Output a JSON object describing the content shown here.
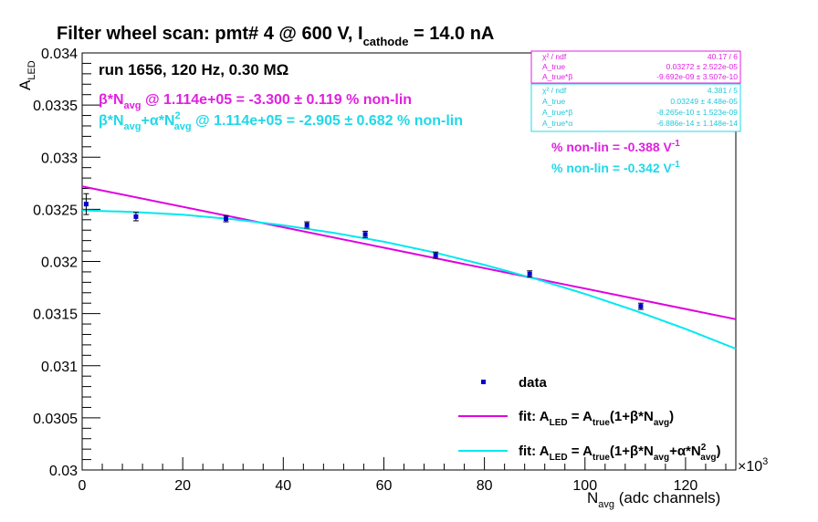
{
  "title": {
    "main": "Filter wheel scan: pmt#   4 @   600 V, I",
    "sub": "cathode",
    "tail": " = 14.0 nA"
  },
  "run_label": "run 1656, 120 Hz, 0.30 MΩ",
  "annotations": {
    "lin": {
      "a": "β*N",
      "a_sub": "avg",
      "b": " @ 1.114e+05 = -3.300 ± 0.119 % non-lin",
      "color": "#e020e0"
    },
    "quad": {
      "a": "β*N",
      "a_sub": "avg",
      "b": "+α*N",
      "b_sup": "2",
      "b_sub": "avg",
      "c": " @ 1.114e+05 = -2.905 ± 0.682 % non-lin",
      "color": "#20d8e8"
    },
    "pv1": {
      "text": "% non-lin = -0.388 V",
      "sup": "-1"
    },
    "pv2": {
      "text": "% non-lin = -0.342 V",
      "sup": "-1"
    }
  },
  "stats": {
    "box1": [
      {
        "name": "χ² / ndf",
        "value": "40.17 / 6"
      },
      {
        "name": "A_true",
        "value": "0.03272 ± 2.522e-05"
      },
      {
        "name": "A_true*β",
        "value": "-9.692e-09 ± 3.507e-10"
      }
    ],
    "box2": [
      {
        "name": "χ² / ndf",
        "value": "4.381 / 5"
      },
      {
        "name": "A_true",
        "value": "0.03249 ± 4.48e-05"
      },
      {
        "name": "A_true*β",
        "value": "-8.265e-10 ± 1.523e-09"
      },
      {
        "name": "A_true*α",
        "value": "-6.886e-14 ± 1.148e-14"
      }
    ]
  },
  "legend": {
    "data": "data",
    "fit1": {
      "p1": "fit: A",
      "s1": "LED",
      "p2": " = A",
      "s2": "true",
      "p3": "(1+β*N",
      "s3": "avg",
      "p4": ")"
    },
    "fit2": {
      "p1": "fit: A",
      "s1": "LED",
      "p2": " = A",
      "s2": "true",
      "p3": "(1+β*N",
      "s3": "avg",
      "p4": "+α*N",
      "sup4": "2",
      "s4": "avg",
      "p5": ")"
    }
  },
  "axes": {
    "ylabel_main": "A",
    "ylabel_sub": "LED",
    "xlabel_main": "N",
    "xlabel_sub": "avg",
    "xlabel_tail": " (adc channels)",
    "x_exponent": "×10",
    "x_exponent_sup": "3"
  },
  "colors": {
    "data": "#0000cc",
    "linear_fit": "#e000e0",
    "quadratic_fit": "#00e8f0"
  },
  "chart_data": {
    "type": "scatter",
    "xlim": [
      0,
      130
    ],
    "ylim": [
      0.03,
      0.034
    ],
    "x_ticks": [
      0,
      20,
      40,
      60,
      80,
      100,
      120
    ],
    "x_tick_labels": [
      "0",
      "20",
      "40",
      "60",
      "80",
      "100",
      "120"
    ],
    "y_ticks": [
      0.03,
      0.0305,
      0.031,
      0.0315,
      0.032,
      0.0325,
      0.033,
      0.0335,
      0.034
    ],
    "y_tick_labels": [
      "0.03",
      "0.0305",
      "0.031",
      "0.0315",
      "0.032",
      "0.0325",
      "0.033",
      "0.0335",
      "0.034"
    ],
    "series": [
      {
        "name": "data",
        "x": [
          0.8,
          10.7,
          28.6,
          44.7,
          56.3,
          70.3,
          89.0,
          111.1
        ],
        "y": [
          0.03255,
          0.03243,
          0.03241,
          0.03235,
          0.03226,
          0.03206,
          0.03188,
          0.03157
        ],
        "err": [
          0.0001,
          4e-05,
          3e-05,
          3e-05,
          3e-05,
          3e-05,
          3e-05,
          3e-05
        ]
      },
      {
        "name": "fit: A_LED = A_true(1+β*N_avg)",
        "x": [
          0,
          130
        ],
        "y": [
          0.03272,
          0.031446
        ]
      },
      {
        "name": "fit: A_LED = A_true(1+β*N_avg+α*N²_avg)",
        "x": [
          0,
          10,
          20,
          30,
          40,
          50,
          60,
          70,
          80,
          90,
          100,
          110,
          120,
          130
        ],
        "y": [
          0.03249,
          0.032475,
          0.032449,
          0.032405,
          0.032347,
          0.032275,
          0.032189,
          0.032087,
          0.031967,
          0.031835,
          0.031689,
          0.031528,
          0.031353,
          0.031163
        ]
      }
    ]
  }
}
